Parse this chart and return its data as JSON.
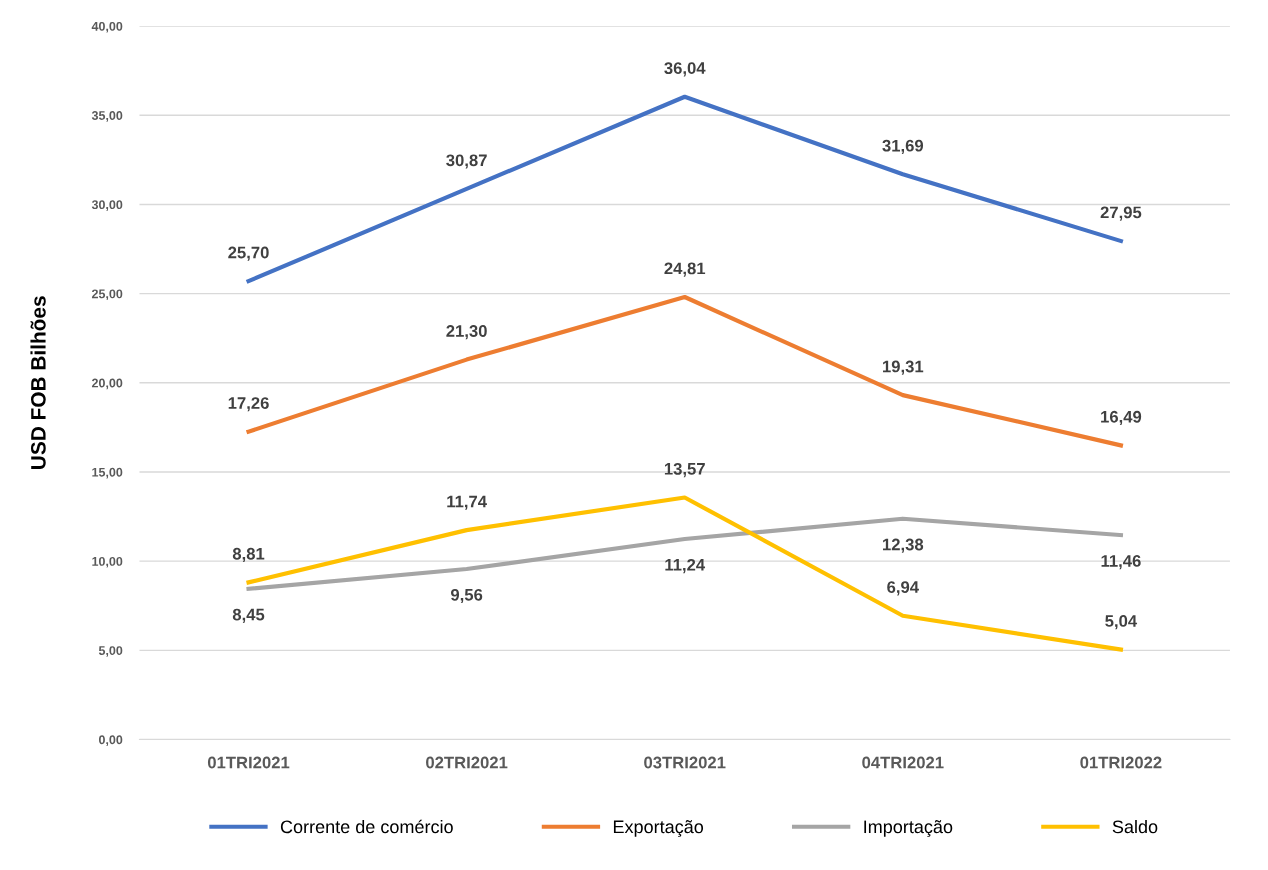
{
  "chart_data": {
    "type": "line",
    "ylabel": "USD FOB Bilhões",
    "categories": [
      "01TRI2021",
      "02TRI2021",
      "03TRI2021",
      "04TRI2021",
      "01TRI2022"
    ],
    "series": [
      {
        "name": "Corrente de comércio",
        "color": "#4472c4",
        "values": [
          25.7,
          30.87,
          36.04,
          31.69,
          27.95
        ],
        "value_labels": [
          "25,70",
          "30,87",
          "36,04",
          "31,69",
          "27,95"
        ]
      },
      {
        "name": "Exportação",
        "color": "#ed7d31",
        "values": [
          17.26,
          21.3,
          24.81,
          19.31,
          16.49
        ],
        "value_labels": [
          "17,26",
          "21,30",
          "24,81",
          "19,31",
          "16,49"
        ]
      },
      {
        "name": "Importação",
        "color": "#a5a5a5",
        "values": [
          8.45,
          9.56,
          11.24,
          12.38,
          11.46
        ],
        "value_labels": [
          "8,45",
          "9,56",
          "11,24",
          "12,38",
          "11,46"
        ]
      },
      {
        "name": "Saldo",
        "color": "#ffc000",
        "values": [
          8.81,
          11.74,
          13.57,
          6.94,
          5.04
        ],
        "value_labels": [
          "8,81",
          "11,74",
          "13,57",
          "6,94",
          "5,04"
        ]
      }
    ],
    "ylim": [
      0,
      40
    ],
    "yticks": [
      {
        "value": 0,
        "label": "0,00"
      },
      {
        "value": 5,
        "label": "5,00"
      },
      {
        "value": 10,
        "label": "10,00"
      },
      {
        "value": 15,
        "label": "15,00"
      },
      {
        "value": 20,
        "label": "20,00"
      },
      {
        "value": 25,
        "label": "25,00"
      },
      {
        "value": 30,
        "label": "30,00"
      },
      {
        "value": 35,
        "label": "35,00"
      },
      {
        "value": 40,
        "label": "40,00"
      }
    ],
    "grid": "y",
    "legend": "bottom",
    "marker": "none",
    "line_style": "solid"
  }
}
